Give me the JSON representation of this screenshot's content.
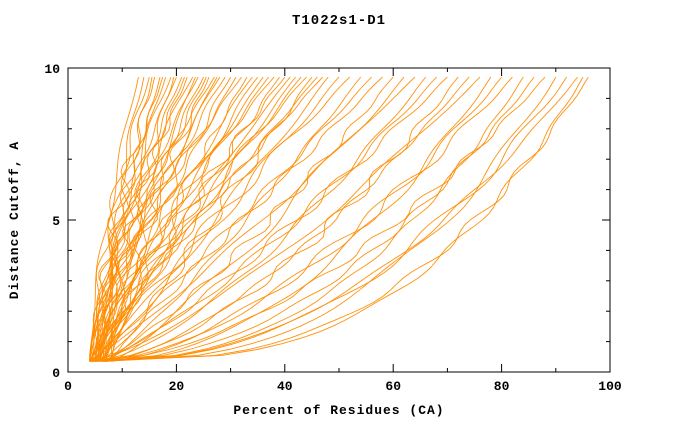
{
  "chart_data": {
    "type": "line",
    "title": "T1022s1-D1",
    "xlabel": "Percent of Residues (CA)",
    "ylabel": "Distance Cutoff, A",
    "xlim": [
      0,
      100
    ],
    "ylim": [
      0,
      10
    ],
    "x_ticks": [
      0,
      20,
      40,
      60,
      80,
      100
    ],
    "x_minor_step": 10,
    "y_ticks": [
      0,
      5,
      10
    ],
    "y_minor_step": 1,
    "grid": false,
    "legend_position": "none",
    "line_color": "#FF8C00",
    "frame_color": "#000000",
    "background_color": "#FFFFFF",
    "curve_y_start": 0.35,
    "curve_y_end": 9.7,
    "n_curves": 68,
    "curve_format": [
      "start_x_percent",
      "top_x_percent",
      "shape_exponent"
    ],
    "curves": [
      [
        4,
        13,
        1.45
      ],
      [
        5.5,
        14,
        1.55
      ],
      [
        4.5,
        15,
        1.62
      ],
      [
        6,
        15.5,
        1.41
      ],
      [
        5,
        16,
        1.51
      ],
      [
        7,
        17,
        1.59
      ],
      [
        4,
        17.5,
        1.39
      ],
      [
        6.5,
        18,
        1.48
      ],
      [
        5,
        19,
        1.56
      ],
      [
        8,
        19.5,
        1.36
      ],
      [
        4,
        20,
        1.45
      ],
      [
        5.5,
        21,
        1.53
      ],
      [
        4.5,
        21.5,
        1.33
      ],
      [
        6,
        22,
        1.42
      ],
      [
        5,
        23,
        1.5
      ],
      [
        7,
        23.5,
        1.3
      ],
      [
        4,
        24,
        1.39
      ],
      [
        6.5,
        25,
        1.48
      ],
      [
        5,
        25.5,
        1.27
      ],
      [
        8,
        26,
        1.36
      ],
      [
        4,
        27,
        1.45
      ],
      [
        5.5,
        27.5,
        1.24
      ],
      [
        4.5,
        28,
        1.33
      ],
      [
        6,
        29,
        1.42
      ],
      [
        5,
        30,
        1.2
      ],
      [
        7,
        31,
        1.29
      ],
      [
        4,
        32,
        1.38
      ],
      [
        6.5,
        33,
        1.16
      ],
      [
        5,
        34,
        1.25
      ],
      [
        8,
        35,
        1.33
      ],
      [
        4,
        36,
        1.12
      ],
      [
        5.5,
        37,
        1.2
      ],
      [
        4.5,
        38,
        1.29
      ],
      [
        6,
        39,
        1.07
      ],
      [
        5,
        40,
        1.16
      ],
      [
        7,
        41,
        1.24
      ],
      [
        4,
        42,
        1.03
      ],
      [
        6.5,
        43,
        1.12
      ],
      [
        5,
        44,
        1.2
      ],
      [
        8,
        45,
        0.99
      ],
      [
        4,
        46,
        1.07
      ],
      [
        5.5,
        47,
        1.16
      ],
      [
        4.5,
        48,
        0.94
      ],
      [
        6,
        50,
        1.01
      ],
      [
        5,
        52,
        1.09
      ],
      [
        7,
        54,
        0.86
      ],
      [
        4,
        56,
        0.93
      ],
      [
        6.5,
        58,
        1.0
      ],
      [
        5,
        60,
        0.77
      ],
      [
        8,
        62,
        0.84
      ],
      [
        4,
        64,
        0.91
      ],
      [
        5.5,
        66,
        0.68
      ],
      [
        4.5,
        68,
        0.75
      ],
      [
        6,
        70,
        0.82
      ],
      [
        5,
        72,
        0.6
      ],
      [
        7,
        74,
        0.67
      ],
      [
        4,
        76,
        0.74
      ],
      [
        6.5,
        78,
        0.51
      ],
      [
        5,
        80,
        0.58
      ],
      [
        8,
        82,
        0.65
      ],
      [
        4,
        84,
        0.42
      ],
      [
        5.5,
        86,
        0.49
      ],
      [
        4.5,
        88,
        0.56
      ],
      [
        6,
        90,
        0.4
      ],
      [
        5,
        92,
        0.44
      ],
      [
        7,
        94,
        0.48
      ],
      [
        4,
        95,
        0.34
      ],
      [
        6.5,
        96,
        0.38
      ]
    ]
  }
}
